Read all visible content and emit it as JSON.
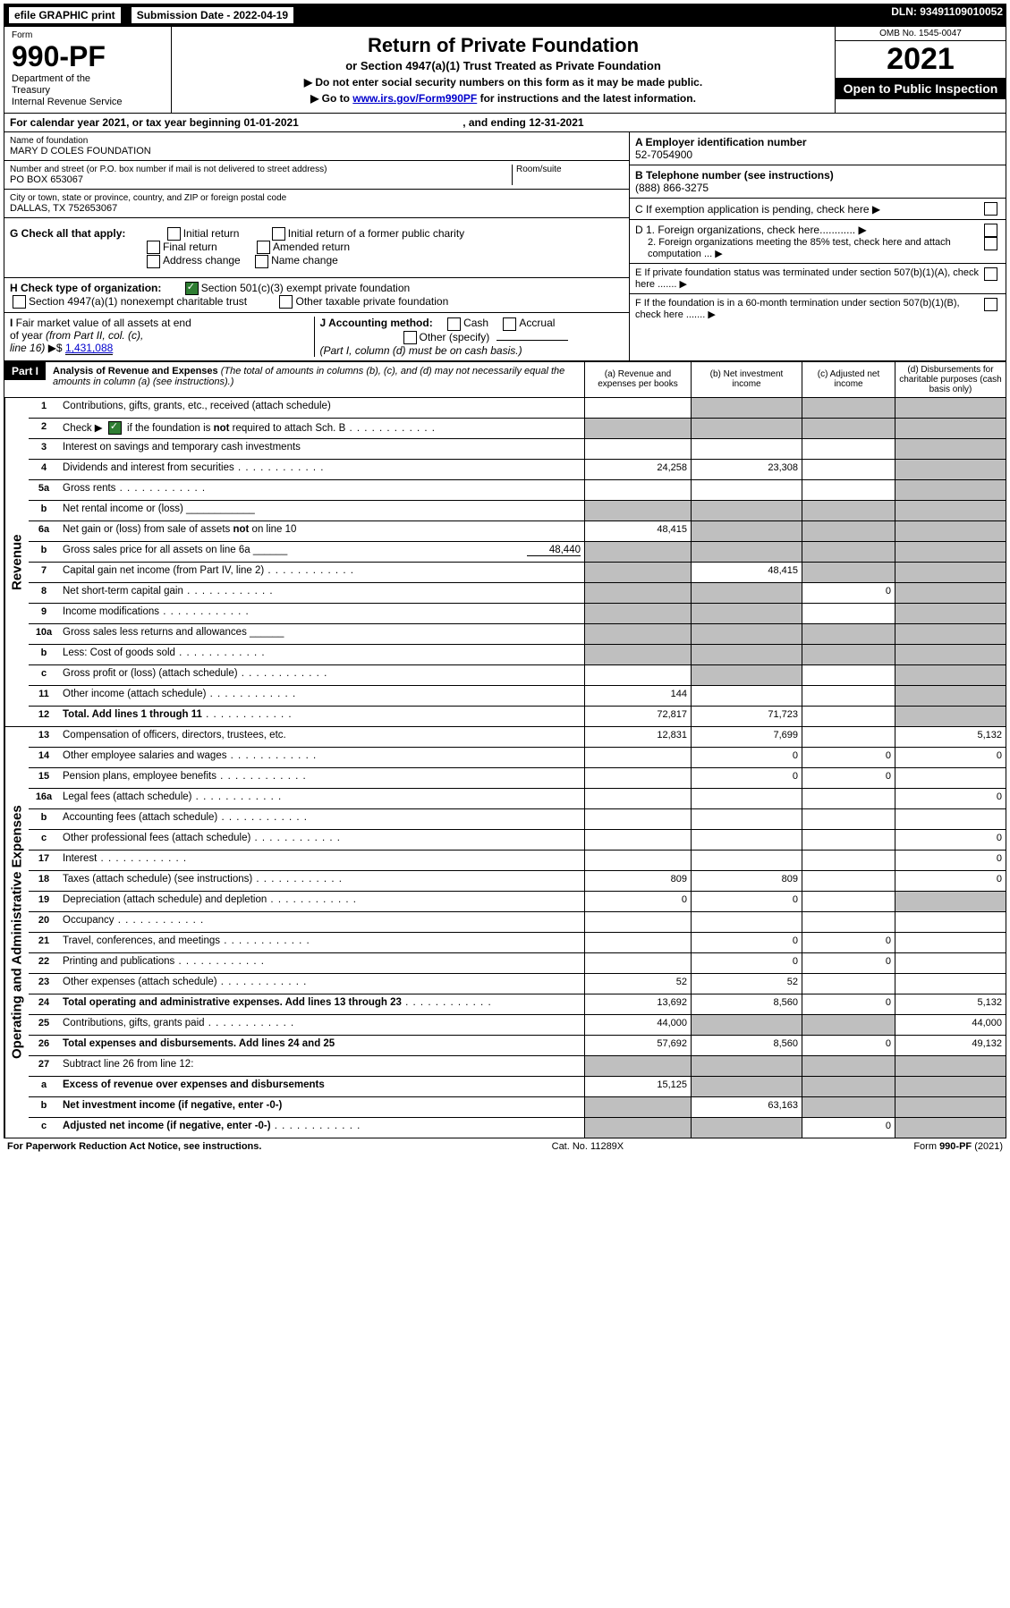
{
  "topbar": {
    "efile": "efile GRAPHIC print",
    "submission": "Submission Date - 2022-04-19",
    "dln": "DLN: 93491109010052"
  },
  "header": {
    "form_word": "Form",
    "form_num": "990-PF",
    "dept": "Department of the Treasury\nInternal Revenue Service",
    "title": "Return of Private Foundation",
    "subtitle": "or Section 4947(a)(1) Trust Treated as Private Foundation",
    "instruct1": "▶ Do not enter social security numbers on this form as it may be made public.",
    "instruct2_pre": "▶ Go to ",
    "instruct2_link": "www.irs.gov/Form990PF",
    "instruct2_post": " for instructions and the latest information.",
    "omb": "OMB No. 1545-0047",
    "year": "2021",
    "open": "Open to Public Inspection"
  },
  "cal_year": {
    "text_pre": "For calendar year 2021, or tax year beginning ",
    "begin": "01-01-2021",
    "mid": " , and ending ",
    "end": "12-31-2021"
  },
  "id_left": {
    "name_label": "Name of foundation",
    "name_value": "MARY D COLES FOUNDATION",
    "addr_label": "Number and street (or P.O. box number if mail is not delivered to street address)",
    "addr_value": "PO BOX 653067",
    "room_label": "Room/suite",
    "city_label": "City or town, state or province, country, and ZIP or foreign postal code",
    "city_value": "DALLAS, TX  752653067",
    "g_label": "G Check all that apply:",
    "g_initial": "Initial return",
    "g_initial_former": "Initial return of a former public charity",
    "g_final": "Final return",
    "g_amended": "Amended return",
    "g_address": "Address change",
    "g_name": "Name change",
    "h_label": "H Check type of organization:",
    "h_501c3": "Section 501(c)(3) exempt private foundation",
    "h_4947": "Section 4947(a)(1) nonexempt charitable trust",
    "h_other": "Other taxable private foundation",
    "i_label": "I Fair market value of all assets at end of year (from Part II, col. (c), line 16)  ▶$ ",
    "i_value": "1,431,088",
    "j_label": "J Accounting method:",
    "j_cash": "Cash",
    "j_accrual": "Accrual",
    "j_other": "Other (specify)",
    "j_note": "(Part I, column (d) must be on cash basis.)"
  },
  "id_right": {
    "a_label": "A Employer identification number",
    "a_value": "52-7054900",
    "b_label": "B Telephone number (see instructions)",
    "b_value": "(888) 866-3275",
    "c_label": "C If exemption application is pending, check here ▶",
    "d1_label": "D 1. Foreign organizations, check here............ ▶",
    "d2_label": "2. Foreign organizations meeting the 85% test, check here and attach computation ... ▶",
    "e_label": "E  If private foundation status was terminated under section 507(b)(1)(A), check here ....... ▶",
    "f_label": "F  If the foundation is in a 60-month termination under section 507(b)(1)(B), check here ....... ▶"
  },
  "part1": {
    "header": "Part I",
    "title": "Analysis of Revenue and Expenses",
    "note": " (The total of amounts in columns (b), (c), and (d) may not necessarily equal the amounts in column (a) (see instructions).)",
    "col_a": "(a)  Revenue and expenses per books",
    "col_b": "(b)  Net investment income",
    "col_c": "(c)  Adjusted net income",
    "col_d": "(d)  Disbursements for charitable purposes (cash basis only)"
  },
  "side_rev": "Revenue",
  "side_exp": "Operating and Administrative Expenses",
  "rows": [
    {
      "n": "1",
      "desc": "Contributions, gifts, grants, etc., received (attach schedule)",
      "a": "",
      "b": "g",
      "c": "g",
      "d": "g"
    },
    {
      "n": "2",
      "desc": "Check ▶ [✓] if the foundation is not required to attach Sch. B",
      "dots": true,
      "a": "g",
      "b": "g",
      "c": "g",
      "d": "g",
      "nocols": true
    },
    {
      "n": "3",
      "desc": "Interest on savings and temporary cash investments",
      "a": "",
      "b": "",
      "c": "",
      "d": "g"
    },
    {
      "n": "4",
      "desc": "Dividends and interest from securities",
      "dots": true,
      "a": "24,258",
      "b": "23,308",
      "c": "",
      "d": "g"
    },
    {
      "n": "5a",
      "desc": "Gross rents",
      "dots": true,
      "a": "",
      "b": "",
      "c": "",
      "d": "g"
    },
    {
      "n": "b",
      "desc": "Net rental income or (loss)  ____________",
      "a": "g",
      "b": "g",
      "c": "g",
      "d": "g"
    },
    {
      "n": "6a",
      "desc": "Net gain or (loss) from sale of assets not on line 10",
      "a": "48,415",
      "b": "g",
      "c": "g",
      "d": "g"
    },
    {
      "n": "b",
      "desc": "Gross sales price for all assets on line 6a ______",
      "inline": "48,440",
      "a": "g",
      "b": "g",
      "c": "g",
      "d": "g"
    },
    {
      "n": "7",
      "desc": "Capital gain net income (from Part IV, line 2)",
      "dots": true,
      "a": "g",
      "b": "48,415",
      "c": "g",
      "d": "g"
    },
    {
      "n": "8",
      "desc": "Net short-term capital gain",
      "dots": true,
      "a": "g",
      "b": "g",
      "c": "0",
      "d": "g"
    },
    {
      "n": "9",
      "desc": "Income modifications",
      "dots": true,
      "a": "g",
      "b": "g",
      "c": "",
      "d": "g"
    },
    {
      "n": "10a",
      "desc": "Gross sales less returns and allowances  ______",
      "a": "g",
      "b": "g",
      "c": "g",
      "d": "g"
    },
    {
      "n": "b",
      "desc": "Less: Cost of goods sold",
      "dots": true,
      "inline_after": "______",
      "a": "g",
      "b": "g",
      "c": "g",
      "d": "g"
    },
    {
      "n": "c",
      "desc": "Gross profit or (loss) (attach schedule)",
      "dots": true,
      "a": "",
      "b": "g",
      "c": "",
      "d": "g"
    },
    {
      "n": "11",
      "desc": "Other income (attach schedule)",
      "dots": true,
      "a": "144",
      "b": "",
      "c": "",
      "d": "g"
    },
    {
      "n": "12",
      "desc": "Total. Add lines 1 through 11",
      "dots": true,
      "bold": true,
      "a": "72,817",
      "b": "71,723",
      "c": "",
      "d": "g"
    }
  ],
  "rows_exp": [
    {
      "n": "13",
      "desc": "Compensation of officers, directors, trustees, etc.",
      "a": "12,831",
      "b": "7,699",
      "c": "",
      "d": "5,132"
    },
    {
      "n": "14",
      "desc": "Other employee salaries and wages",
      "dots": true,
      "a": "",
      "b": "0",
      "c": "0",
      "d": "0"
    },
    {
      "n": "15",
      "desc": "Pension plans, employee benefits",
      "dots": true,
      "a": "",
      "b": "0",
      "c": "0",
      "d": ""
    },
    {
      "n": "16a",
      "desc": "Legal fees (attach schedule)",
      "dots": true,
      "a": "",
      "b": "",
      "c": "",
      "d": "0"
    },
    {
      "n": "b",
      "desc": "Accounting fees (attach schedule)",
      "dots": true,
      "a": "",
      "b": "",
      "c": "",
      "d": ""
    },
    {
      "n": "c",
      "desc": "Other professional fees (attach schedule)",
      "dots": true,
      "a": "",
      "b": "",
      "c": "",
      "d": "0"
    },
    {
      "n": "17",
      "desc": "Interest",
      "dots": true,
      "a": "",
      "b": "",
      "c": "",
      "d": "0"
    },
    {
      "n": "18",
      "desc": "Taxes (attach schedule) (see instructions)",
      "dots": true,
      "a": "809",
      "b": "809",
      "c": "",
      "d": "0"
    },
    {
      "n": "19",
      "desc": "Depreciation (attach schedule) and depletion",
      "dots": true,
      "a": "0",
      "b": "0",
      "c": "",
      "d": "g"
    },
    {
      "n": "20",
      "desc": "Occupancy",
      "dots": true,
      "a": "",
      "b": "",
      "c": "",
      "d": ""
    },
    {
      "n": "21",
      "desc": "Travel, conferences, and meetings",
      "dots": true,
      "a": "",
      "b": "0",
      "c": "0",
      "d": ""
    },
    {
      "n": "22",
      "desc": "Printing and publications",
      "dots": true,
      "a": "",
      "b": "0",
      "c": "0",
      "d": ""
    },
    {
      "n": "23",
      "desc": "Other expenses (attach schedule)",
      "dots": true,
      "a": "52",
      "b": "52",
      "c": "",
      "d": ""
    },
    {
      "n": "24",
      "desc": "Total operating and administrative expenses. Add lines 13 through 23",
      "dots": true,
      "bold": true,
      "a": "13,692",
      "b": "8,560",
      "c": "0",
      "d": "5,132"
    },
    {
      "n": "25",
      "desc": "Contributions, gifts, grants paid",
      "dots": true,
      "a": "44,000",
      "b": "g",
      "c": "g",
      "d": "44,000"
    },
    {
      "n": "26",
      "desc": "Total expenses and disbursements. Add lines 24 and 25",
      "bold": true,
      "a": "57,692",
      "b": "8,560",
      "c": "0",
      "d": "49,132"
    },
    {
      "n": "27",
      "desc": "Subtract line 26 from line 12:",
      "a": "g",
      "b": "g",
      "c": "g",
      "d": "g"
    },
    {
      "n": "a",
      "desc": "Excess of revenue over expenses and disbursements",
      "bold": true,
      "a": "15,125",
      "b": "g",
      "c": "g",
      "d": "g"
    },
    {
      "n": "b",
      "desc": "Net investment income (if negative, enter -0-)",
      "bold": true,
      "a": "g",
      "b": "63,163",
      "c": "g",
      "d": "g"
    },
    {
      "n": "c",
      "desc": "Adjusted net income (if negative, enter -0-)",
      "dots": true,
      "bold": true,
      "a": "g",
      "b": "g",
      "c": "0",
      "d": "g"
    }
  ],
  "footer": {
    "left": "For Paperwork Reduction Act Notice, see instructions.",
    "center": "Cat. No. 11289X",
    "right": "Form 990-PF (2021)"
  }
}
